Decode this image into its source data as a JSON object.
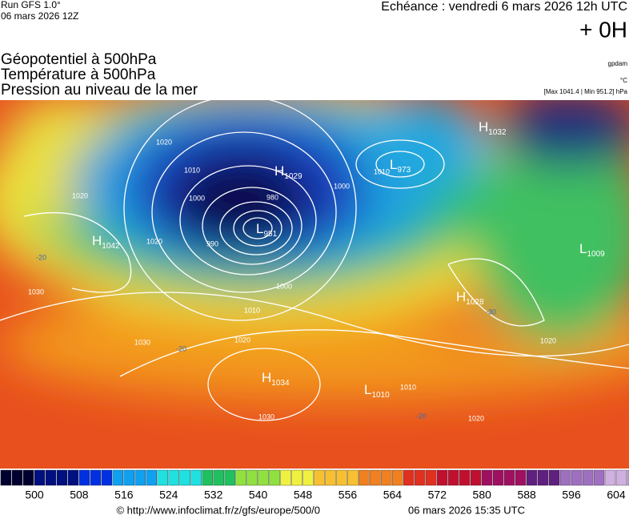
{
  "header": {
    "run": "Run GFS 1.0°",
    "date": "06 mars 2026 12Z",
    "echeance": "Echéance : vendredi 6 mars 2026 12h UTC",
    "offset": "+ 0H",
    "source": "gpdam",
    "unit": "°C",
    "extremes": "[Max 1041.4 | Min 951.2] hPa",
    "titles": [
      "Géopotentiel à 500hPa",
      "Température à 500hPa",
      "Pression au niveau de la mer"
    ]
  },
  "map": {
    "centers": [
      {
        "symbol": "H",
        "value": "1042"
      },
      {
        "symbol": "L",
        "value": "951"
      },
      {
        "symbol": "H",
        "value": "1029"
      },
      {
        "symbol": "L",
        "value": "973"
      },
      {
        "symbol": "H",
        "value": "1032"
      },
      {
        "symbol": "L",
        "value": "1009"
      },
      {
        "symbol": "H",
        "value": "1028"
      },
      {
        "symbol": "H",
        "value": "1034"
      },
      {
        "symbol": "L",
        "value": "1010"
      }
    ],
    "isobar_labels": [
      "1020",
      "1010",
      "1000",
      "990",
      "980",
      "1000",
      "1010",
      "1020",
      "1030",
      "1030",
      "1020",
      "1000",
      "1010",
      "1020",
      "1020",
      "1030",
      "1020",
      "1010",
      "1020"
    ],
    "temperature_labels": [
      "-20",
      "-20",
      "-30",
      "-20"
    ]
  },
  "colorbar": {
    "labels": [
      500,
      508,
      516,
      524,
      532,
      540,
      548,
      556,
      564,
      572,
      580,
      588,
      596,
      604
    ]
  },
  "footer": {
    "url": "© http://www.infoclimat.fr/z/gfs/europe/500/0",
    "timestamp": "06 mars 2026 15:35 UTC"
  }
}
